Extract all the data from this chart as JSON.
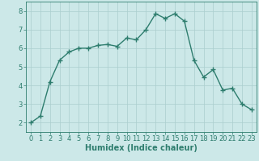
{
  "x": [
    0,
    1,
    2,
    3,
    4,
    5,
    6,
    7,
    8,
    9,
    10,
    11,
    12,
    13,
    14,
    15,
    16,
    17,
    18,
    19,
    20,
    21,
    22,
    23
  ],
  "y": [
    2.0,
    2.35,
    4.2,
    5.35,
    5.8,
    6.0,
    6.0,
    6.15,
    6.2,
    6.1,
    6.55,
    6.45,
    7.0,
    7.85,
    7.6,
    7.85,
    7.45,
    5.35,
    4.45,
    4.85,
    3.75,
    3.85,
    3.0,
    2.7
  ],
  "line_color": "#2e7d6e",
  "marker": "+",
  "marker_size": 4,
  "marker_color": "#2e7d6e",
  "bg_color": "#cce8e8",
  "grid_color": "#aacece",
  "xlabel": "Humidex (Indice chaleur)",
  "xlabel_color": "#2e7d6e",
  "tick_color": "#2e7d6e",
  "xlim": [
    -0.5,
    23.5
  ],
  "ylim": [
    1.5,
    8.5
  ],
  "xticks": [
    0,
    1,
    2,
    3,
    4,
    5,
    6,
    7,
    8,
    9,
    10,
    11,
    12,
    13,
    14,
    15,
    16,
    17,
    18,
    19,
    20,
    21,
    22,
    23
  ],
  "yticks": [
    2,
    3,
    4,
    5,
    6,
    7,
    8
  ],
  "line_width": 1.0,
  "font_size_ticks": 6.0,
  "font_size_xlabel": 7.0
}
